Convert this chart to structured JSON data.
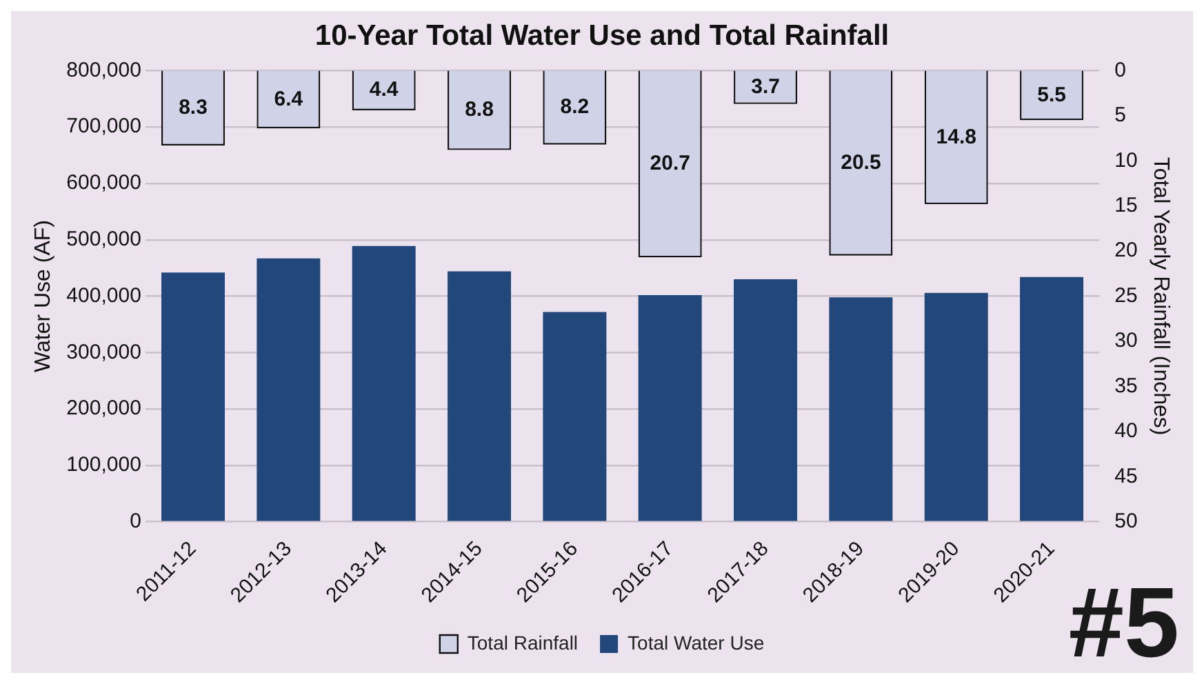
{
  "chart_data": {
    "type": "bar",
    "title": "10-Year Total Water Use and Total Rainfall",
    "ylabel": "Water Use (AF)",
    "y2label": "Total Yearly Rainfall (Inches)",
    "categories": [
      "2011-12",
      "2012-13",
      "2013-14",
      "2014-15",
      "2015-16",
      "2016-17",
      "2017-18",
      "2018-19",
      "2019-20",
      "2020-21"
    ],
    "series": [
      {
        "name": "Total Water Use",
        "color": "#22477a",
        "values": [
          442000,
          467000,
          489000,
          444000,
          372000,
          402000,
          430000,
          398000,
          406000,
          434000
        ]
      },
      {
        "name": "Total Rainfall",
        "color": "#d0d3e8",
        "axis": "y2",
        "values": [
          8.3,
          6.4,
          4.4,
          8.8,
          8.2,
          20.7,
          3.7,
          20.5,
          14.8,
          5.5
        ],
        "value_labels": [
          "8.3",
          "6.4",
          "4.4",
          "8.8",
          "8.2",
          "20.7",
          "3.7",
          "20.5",
          "14.8",
          "5.5"
        ]
      }
    ],
    "ylim": [
      0,
      800000
    ],
    "yticks": [
      {
        "value": 0,
        "label": "0"
      },
      {
        "value": 100000,
        "label": "100,000"
      },
      {
        "value": 200000,
        "label": "200,000"
      },
      {
        "value": 300000,
        "label": "300,000"
      },
      {
        "value": 400000,
        "label": "400,000"
      },
      {
        "value": 500000,
        "label": "500,000"
      },
      {
        "value": 600000,
        "label": "600,000"
      },
      {
        "value": 700000,
        "label": "700,000"
      },
      {
        "value": 800000,
        "label": "800,000"
      }
    ],
    "y2lim": [
      50,
      0
    ],
    "y2ticks": [
      0,
      5,
      10,
      15,
      20,
      25,
      30,
      35,
      40,
      45,
      50
    ],
    "grid": "y",
    "legend": "bottom",
    "annotations": [
      "#5"
    ]
  }
}
